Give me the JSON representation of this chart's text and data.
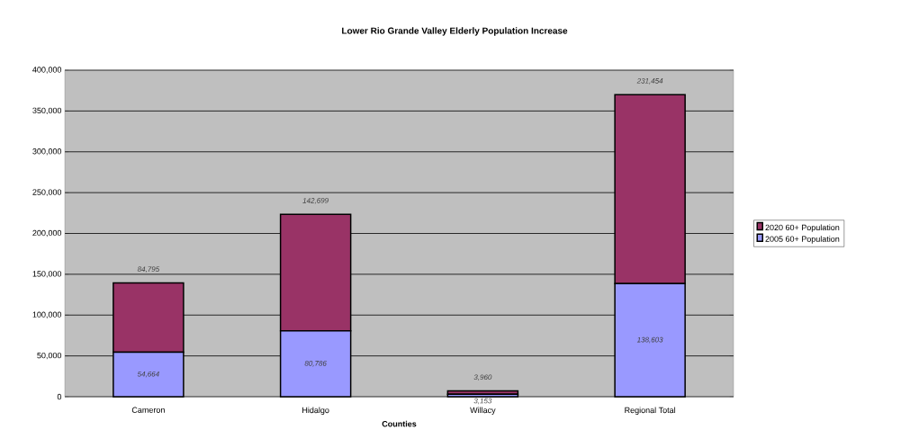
{
  "chart_data": {
    "type": "bar",
    "title": "Lower Rio Grande Valley Elderly Population Increase",
    "xlabel": "Counties",
    "categories": [
      "Cameron",
      "Hidalgo",
      "Willacy",
      "Regional Total"
    ],
    "stacked": true,
    "series": [
      {
        "name": "2005 60+ Population",
        "color": "#9999ff",
        "values": [
          54664,
          80786,
          3153,
          138603
        ],
        "value_labels": [
          "54,664",
          "80,786",
          "3,153",
          "138,603"
        ]
      },
      {
        "name": "2020 60+ Population",
        "color": "#993366",
        "values": [
          84795,
          142699,
          3960,
          231454
        ],
        "value_labels": [
          "84,795",
          "142,699",
          "3,960",
          "231,454"
        ]
      }
    ],
    "ylim": [
      0,
      400000
    ],
    "yticks": [
      {
        "value": 0,
        "label": "0"
      },
      {
        "value": 50000,
        "label": "50,000"
      },
      {
        "value": 100000,
        "label": "100,000"
      },
      {
        "value": 150000,
        "label": "150,000"
      },
      {
        "value": 200000,
        "label": "200,000"
      },
      {
        "value": 250000,
        "label": "250,000"
      },
      {
        "value": 300000,
        "label": "300,000"
      },
      {
        "value": 350000,
        "label": "350,000"
      },
      {
        "value": 400000,
        "label": "400,000"
      }
    ],
    "grid": "y",
    "legend": "right"
  }
}
